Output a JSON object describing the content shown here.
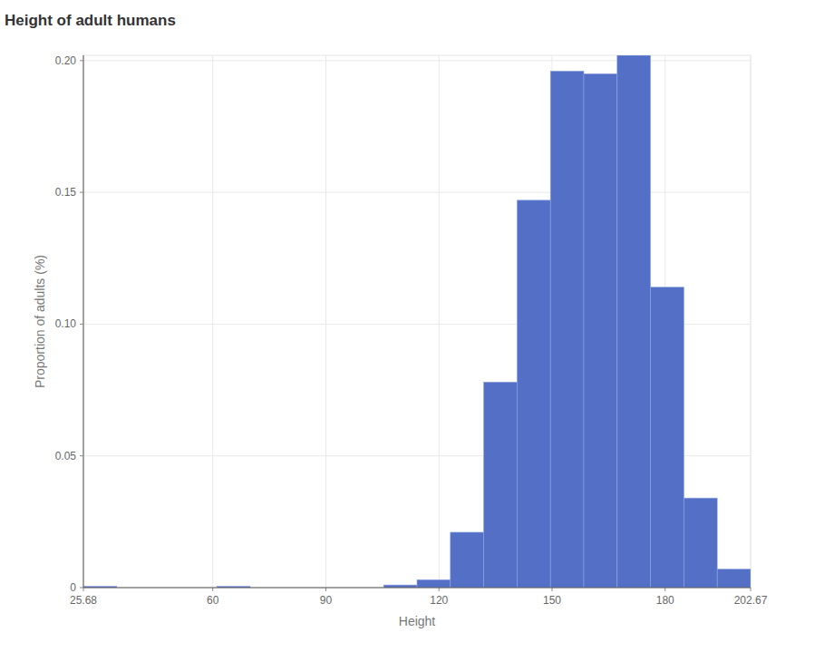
{
  "chart_data": {
    "type": "histogram",
    "title": "Height of adult humans",
    "x_label": "Height",
    "y_label": "Proportion of adults (%)",
    "bins": [
      25.68,
      34.5295,
      43.379,
      52.2285,
      61.078,
      69.9275,
      78.777,
      87.6265,
      96.476,
      105.3255,
      114.175,
      123.0245,
      131.874,
      140.7235,
      149.573,
      158.4225,
      167.272,
      176.1215,
      184.971,
      193.8205,
      202.67
    ],
    "values": [
      0.0005,
      0,
      0,
      0,
      0.0005,
      0,
      0,
      0,
      0,
      0.001,
      0.003,
      0.021,
      0.078,
      0.147,
      0.196,
      0.195,
      0.202,
      0.114,
      0.034,
      0.007
    ],
    "color": "#5470c6",
    "xlim": [
      25.68,
      202.67
    ],
    "xticks": [
      25.68,
      60,
      90,
      120,
      150,
      180,
      202.67
    ],
    "ylim": [
      0,
      0.202
    ],
    "yticks": [
      0,
      0.05,
      {
        "value": 0.1,
        "label": "0.10"
      },
      0.15,
      {
        "value": 0.2,
        "label": "0.20"
      }
    ],
    "grid": true
  }
}
